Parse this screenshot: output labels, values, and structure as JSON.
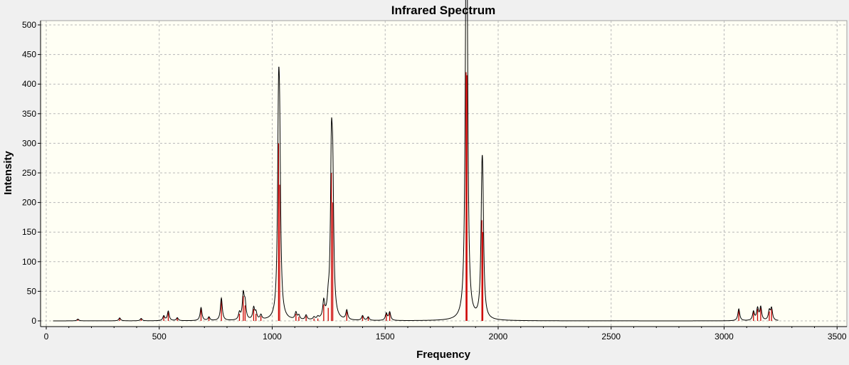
{
  "chart_data": {
    "type": "line",
    "title": "Infrared Spectrum",
    "xlabel": "Frequency",
    "ylabel": "Intensity",
    "xlim": [
      -20,
      3500
    ],
    "ylim": [
      0,
      500
    ],
    "xticks": [
      0,
      500,
      1000,
      1500,
      2000,
      2500,
      3000,
      3500
    ],
    "xtick_labels": [
      "0",
      "500",
      "1000",
      "1500",
      "2000",
      "2500",
      "3000",
      "3500"
    ],
    "yticks": [
      0,
      50,
      100,
      150,
      200,
      250,
      300,
      350,
      400,
      450,
      500
    ],
    "ytick_labels": [
      "0",
      "50",
      "100",
      "150",
      "200",
      "250",
      "300",
      "350",
      "400",
      "450",
      "500"
    ],
    "grid": true,
    "legend": "none",
    "colors": {
      "plot_background": "#fffff4",
      "spectrum_line": "#000000",
      "stick_lines": "#cc0000",
      "grid": "#b8b8b8",
      "frame": "#f0f0f0"
    },
    "broadening_hwhm": 5,
    "spectrum_range": [
      30,
      3240
    ],
    "series": [
      {
        "style": "sticks",
        "x": [
          140,
          325,
          420,
          520,
          540,
          580,
          685,
          720,
          775,
          855,
          872,
          880,
          918,
          928,
          950,
          1028,
          1033,
          1105,
          1118,
          1150,
          1185,
          1202,
          1228,
          1248,
          1262,
          1268,
          1330,
          1400,
          1425,
          1505,
          1520,
          1858,
          1862,
          1928,
          1932,
          3065,
          3130,
          3148,
          3162,
          3200,
          3210
        ],
        "y": [
          3,
          5,
          4,
          8,
          16,
          5,
          22,
          6,
          38,
          12,
          42,
          26,
          20,
          12,
          8,
          300,
          230,
          12,
          7,
          8,
          4,
          4,
          28,
          22,
          250,
          200,
          16,
          8,
          6,
          12,
          14,
          420,
          415,
          170,
          150,
          20,
          15,
          20,
          22,
          16,
          20
        ]
      }
    ]
  }
}
